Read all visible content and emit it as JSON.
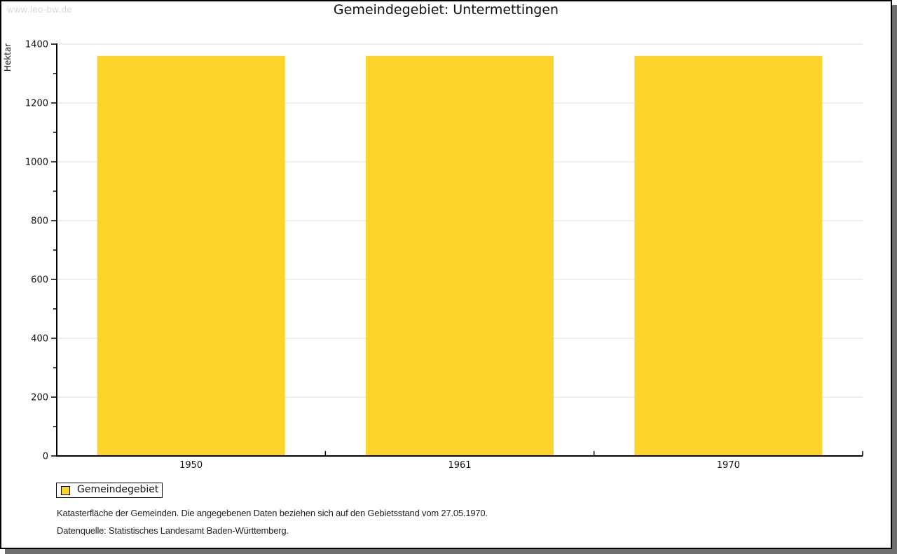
{
  "watermark": "www.leo-bw.de",
  "title": "Gemeindegebiet: Untermettingen",
  "chart_data": {
    "type": "bar",
    "title": "Gemeindegebiet: Untermettingen",
    "categories": [
      "1950",
      "1961",
      "1970"
    ],
    "series": [
      {
        "name": "Gemeindegebiet",
        "values": [
          1360,
          1360,
          1360
        ]
      }
    ],
    "xlabel": "",
    "ylabel": "Hektar",
    "ylim": [
      0,
      1400
    ],
    "ytick_step": 200,
    "minor_tick_step": 100,
    "grid": true,
    "legend_position": "bottom-left"
  },
  "legend": {
    "items": [
      {
        "label": "Gemeindegebiet",
        "color": "#fdd42c"
      }
    ]
  },
  "footnotes": [
    "Katasterfläche der Gemeinden. Die angegebenen Daten beziehen sich auf den Gebietsstand vom 27.05.1970.",
    "Datenquelle: Statistisches Landesamt Baden-Württemberg."
  ],
  "colors": {
    "bar": "#fdd42c",
    "grid": "#dcdcdc",
    "axis": "#000000",
    "tick_text": "#111111",
    "watermark": "#d8d8d8",
    "frame_shadow": "#6e6e6e"
  }
}
